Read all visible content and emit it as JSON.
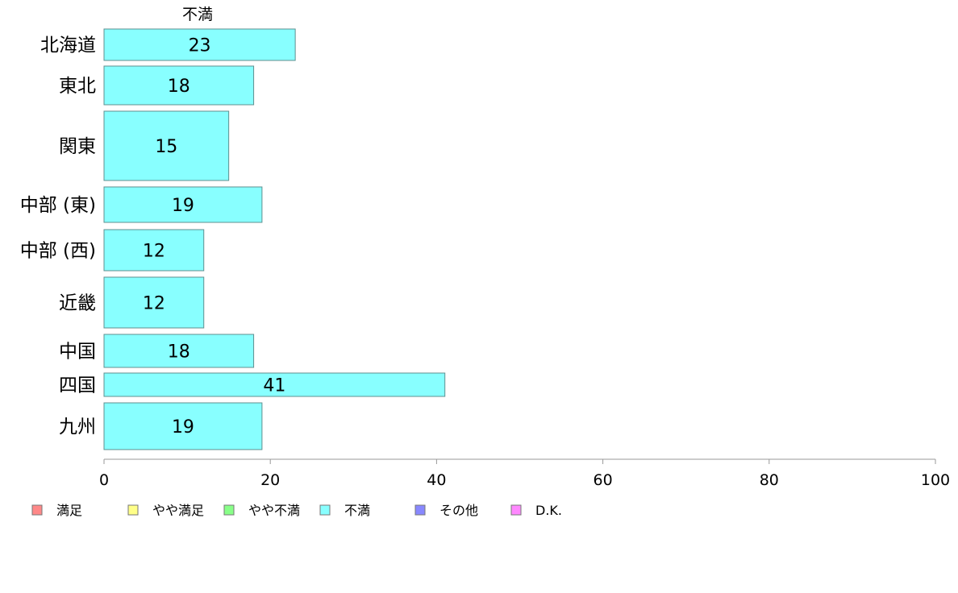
{
  "chart_data": {
    "type": "bar",
    "orientation": "horizontal",
    "stacked": true,
    "categories": [
      "北海道",
      "東北",
      "関東",
      "中部 (東)",
      "中部 (西)",
      "近畿",
      "中国",
      "四国",
      "九州"
    ],
    "series": [
      {
        "name": "不満",
        "color": "#88ffff",
        "values": [
          23,
          18,
          15,
          19,
          12,
          12,
          18,
          41,
          19
        ]
      }
    ],
    "series_label_top": "不満",
    "xlim": [
      0,
      100
    ],
    "xticks": [
      "0",
      "20",
      "40",
      "60",
      "80",
      "100"
    ],
    "xtick_values": [
      0,
      20,
      40,
      60,
      80,
      100
    ],
    "grid": false,
    "legend_position": "bottom",
    "legend": [
      {
        "label": "満足",
        "color": "#ff8888"
      },
      {
        "label": "やや満足",
        "color": "#ffff88"
      },
      {
        "label": "やや不満",
        "color": "#88ff88"
      },
      {
        "label": "不満",
        "color": "#88ffff"
      },
      {
        "label": "その他",
        "color": "#8888ff"
      },
      {
        "label": "D.K.",
        "color": "#ff88ff"
      }
    ]
  }
}
